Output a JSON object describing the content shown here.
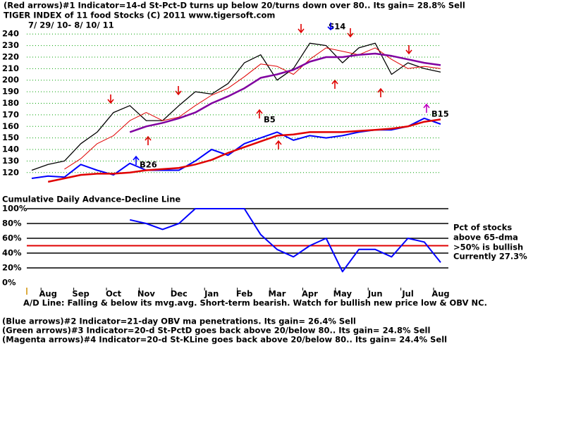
{
  "header": {
    "indicator1": "(Red arrows)#1 Indicator=14-d St-Pct-D turns up below 20/turns down over 80.. Its gain= 28.8% Sell",
    "title": "TIGER INDEX of  11 food Stocks  (C) 2011  www.tigersoft.com",
    "dates": "7/ 29/ 10- 8/ 10/ 11"
  },
  "chart_data": [
    {
      "type": "line",
      "annotations": [
        "S14",
        "B5",
        "B26",
        "B15"
      ],
      "ylim": [
        104,
        245
      ],
      "yticks": [
        120,
        130,
        140,
        150,
        160,
        170,
        180,
        190,
        200,
        210,
        220,
        230,
        240
      ],
      "grid": true,
      "series": [
        {
          "name": "Tiger Index",
          "color": "#000000",
          "line_width": 1.3,
          "values": [
            122,
            127,
            130,
            145,
            155,
            172,
            178,
            165,
            165,
            178,
            190,
            188,
            197,
            215,
            222,
            200,
            210,
            232,
            230,
            215,
            228,
            232,
            205,
            215,
            210,
            207
          ]
        },
        {
          "name": "21-day ma",
          "color": "#e00000",
          "line_width": 1,
          "values": [
            null,
            null,
            123,
            132,
            145,
            152,
            165,
            172,
            165,
            168,
            178,
            187,
            193,
            203,
            214,
            212,
            205,
            218,
            228,
            225,
            222,
            228,
            218,
            210,
            212,
            210
          ]
        },
        {
          "name": "65-dma",
          "color": "#8000a0",
          "line_width": 2.5,
          "values": [
            null,
            null,
            null,
            null,
            null,
            null,
            155,
            160,
            163,
            167,
            172,
            180,
            186,
            193,
            202,
            205,
            209,
            216,
            220,
            220,
            222,
            223,
            221,
            218,
            215,
            213
          ]
        },
        {
          "name": "A/D Line",
          "color": "#0000ff",
          "line_width": 2,
          "values": [
            115,
            117,
            116,
            127,
            122,
            118,
            128,
            122,
            122,
            122,
            130,
            140,
            135,
            145,
            150,
            155,
            148,
            152,
            150,
            152,
            155,
            157,
            157,
            160,
            167,
            162
          ]
        },
        {
          "name": "A/D ma",
          "color": "#e00000",
          "line_width": 2.5,
          "values": [
            null,
            112,
            115,
            118,
            119,
            119,
            120,
            122,
            123,
            124,
            127,
            131,
            137,
            142,
            147,
            152,
            153,
            155,
            155,
            155,
            156,
            157,
            158,
            160,
            164,
            166
          ]
        }
      ]
    },
    {
      "type": "line",
      "title": "Cumulative Daily Advance-Decline Line",
      "categories": [
        null,
        "Aug",
        null,
        "Sep",
        null,
        "Oct",
        null,
        "Nov",
        null,
        "Dec",
        null,
        "Jan",
        null,
        "Feb",
        null,
        "Mar",
        null,
        "Apr",
        null,
        "May",
        null,
        "Jun",
        null,
        "Jul",
        null,
        "Aug"
      ],
      "ylim": [
        0,
        100
      ],
      "yticks": [
        {
          "value": 0,
          "label": "0%"
        },
        {
          "value": 20,
          "label": "20%"
        },
        {
          "value": 40,
          "label": "40%"
        },
        {
          "value": 60,
          "label": "60%"
        },
        {
          "value": 80,
          "label": "80%"
        },
        {
          "value": 100,
          "label": "100%"
        }
      ],
      "threshold": 50,
      "threshold_color": "#e00000",
      "notes": [
        "Pct of stocks",
        "above 65-dma",
        ">50% is bullish",
        "Currently  27.3%"
      ],
      "series": [
        {
          "name": "Pct of stocks above 65-dma",
          "color": "#0000ff",
          "line_width": 2,
          "values": [
            null,
            null,
            null,
            null,
            null,
            null,
            85,
            80,
            72,
            80,
            100,
            100,
            100,
            100,
            65,
            45,
            35,
            50,
            60,
            15,
            45,
            45,
            35,
            60,
            55,
            27.3
          ]
        }
      ]
    }
  ],
  "footer": [
    "A/D Line: Falling & below its mvg.avg. Short-term bearish. Watch for bullish new price low & OBV NC.",
    "(Blue arrows)#2 Indicator=21-day OBV ma penetrations. Its gain= 26.4% Sell",
    "(Green arrows)#3 Indicator=20-d St-PctD goes back above 20/below 80.. Its gain= 24.8% Sell",
    "(Magenta arrows)#4 Indicator=20-d St-KLine goes back above 20/below 80.. Its gain= 24.4% Sell"
  ]
}
